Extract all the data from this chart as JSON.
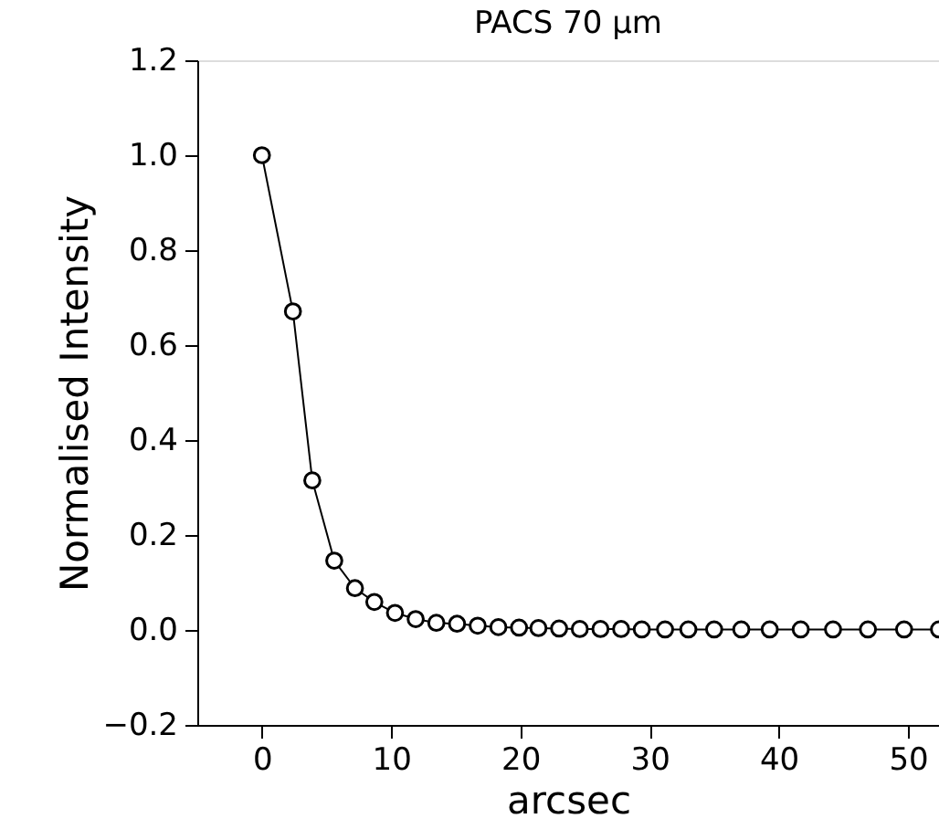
{
  "chart_data": {
    "type": "line",
    "title": "PACS 70 μm",
    "xlabel": "arcsec",
    "ylabel": "Normalised Intensity",
    "x": [
      0,
      2.4,
      3.9,
      5.6,
      7.2,
      8.7,
      10.3,
      11.9,
      13.5,
      15.1,
      16.7,
      18.3,
      19.9,
      21.4,
      23.0,
      24.6,
      26.2,
      27.8,
      29.4,
      31.2,
      33.0,
      35.0,
      37.1,
      39.3,
      41.7,
      44.2,
      46.9,
      49.7,
      52.4
    ],
    "series": [
      {
        "color": "#000000",
        "values": [
          1.0,
          0.671,
          0.315,
          0.146,
          0.088,
          0.059,
          0.036,
          0.023,
          0.015,
          0.013,
          0.009,
          0.006,
          0.005,
          0.004,
          0.003,
          0.002,
          0.002,
          0.002,
          0.001,
          0.001,
          0.001,
          0.001,
          0.001,
          0.001,
          0.001,
          0.001,
          0.001,
          0.001,
          0.001
        ]
      }
    ],
    "xlim": [
      -5,
      52.4
    ],
    "xticks": [
      0,
      10,
      20,
      30,
      40,
      50
    ],
    "ylim": [
      -0.2,
      1.2
    ],
    "yticks": [
      {
        "value": -0.2,
        "label": "−0.2"
      },
      {
        "value": 0,
        "label": "0.0"
      },
      {
        "value": 0.2,
        "label": "0.2"
      },
      {
        "value": 0.4,
        "label": "0.4"
      },
      {
        "value": 0.6,
        "label": "0.6"
      },
      {
        "value": 0.8,
        "label": "0.8"
      },
      {
        "value": 1,
        "label": "1.0"
      },
      {
        "value": 1.2,
        "label": "1.2"
      }
    ],
    "marker": "circle",
    "line_style": "solid",
    "grid": false
  }
}
